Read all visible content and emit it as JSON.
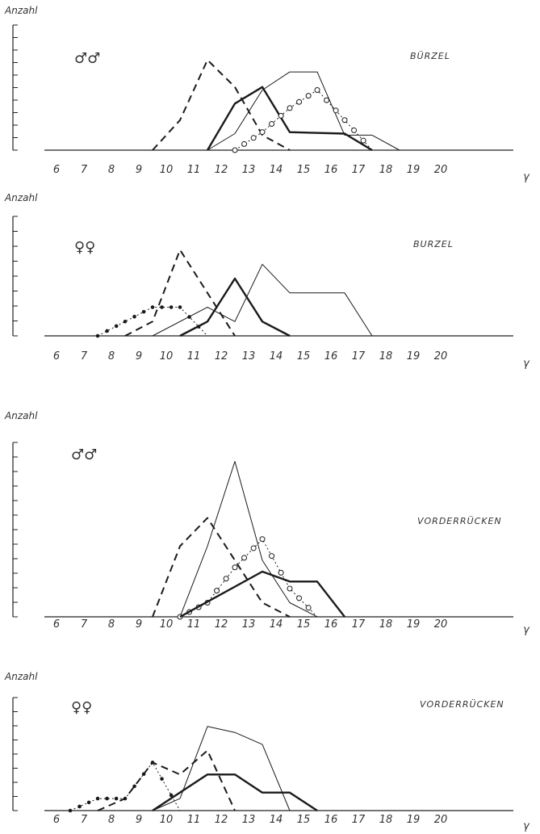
{
  "shared": {
    "ylabel": "Anzahl",
    "xunit": "γ",
    "series_styles": [
      "thin-solid",
      "thick-solid",
      "dashed",
      "dotted-filled-dots",
      "dotted-open-circles"
    ]
  },
  "panels": [
    {
      "symbol": "♂♂",
      "region": "BÜRZEL",
      "xticks": [
        "6",
        "7",
        "8",
        "9",
        "10",
        "11",
        "12",
        "13",
        "14",
        "15",
        "16",
        "17",
        "18",
        "19",
        "20"
      ]
    },
    {
      "symbol": "♀♀",
      "region": "BURZEL",
      "xticks": [
        "6",
        "7",
        "8",
        "9",
        "10",
        "11",
        "12",
        "13",
        "14",
        "15",
        "16",
        "17",
        "18",
        "19",
        "20"
      ]
    },
    {
      "symbol": "♂♂",
      "region": "VORDERRÜCKEN",
      "xticks": [
        "6",
        "7",
        "8",
        "9",
        "10",
        "11",
        "12",
        "13",
        "14",
        "15",
        "16",
        "17",
        "18",
        "19",
        "20"
      ]
    },
    {
      "symbol": "♀♀",
      "region": "VORDERRÜCKEN",
      "xticks": [
        "6",
        "7",
        "8",
        "9",
        "10",
        "11",
        "12",
        "13",
        "14",
        "15",
        "16",
        "17",
        "18",
        "19",
        "20"
      ]
    }
  ],
  "chart_data": [
    {
      "type": "line",
      "title": "BÜRZEL",
      "ylabel": "Anzahl",
      "xlabel": "γ",
      "xlim": [
        6,
        21
      ],
      "ylim": [
        0,
        8
      ],
      "series": [
        {
          "style": "dashed",
          "x": [
            9.5,
            10.5,
            11.5,
            12.5,
            13.5,
            14.5
          ],
          "y": [
            0,
            2,
            6,
            4.2,
            1,
            0
          ]
        },
        {
          "style": "thick-solid",
          "x": [
            11.5,
            12.5,
            13.5,
            14.5,
            16.5,
            17.5
          ],
          "y": [
            0,
            3.1,
            4.2,
            1.2,
            1.1,
            0
          ]
        },
        {
          "style": "thin-solid",
          "x": [
            11.5,
            12.5,
            13.5,
            14.5,
            15.5,
            16.5,
            17.5,
            18.5
          ],
          "y": [
            0,
            1.1,
            4.0,
            5.2,
            5.2,
            1.0,
            1.0,
            0
          ]
        },
        {
          "style": "dotted-open-circles",
          "x": [
            12.5,
            13.5,
            14.5,
            15.5,
            16.5,
            17.5
          ],
          "y": [
            0,
            1.2,
            2.8,
            4.0,
            2.0,
            0
          ]
        }
      ]
    },
    {
      "type": "line",
      "title": "BURZEL",
      "ylabel": "Anzahl",
      "xlabel": "γ",
      "xlim": [
        6,
        21
      ],
      "ylim": [
        0,
        8
      ],
      "series": [
        {
          "style": "dotted-filled-dots",
          "x": [
            7.5,
            8.5,
            9.5,
            10.5,
            11.5
          ],
          "y": [
            0,
            1,
            2,
            2,
            0
          ]
        },
        {
          "style": "dashed",
          "x": [
            8.5,
            9.5,
            10.5,
            11.5,
            12.5
          ],
          "y": [
            0,
            1,
            6,
            3,
            0
          ]
        },
        {
          "style": "thin-solid",
          "x": [
            9.5,
            11.5,
            12.5,
            13.5,
            14.5,
            16.5,
            17.5
          ],
          "y": [
            0,
            2,
            1,
            5,
            3,
            3,
            0
          ]
        },
        {
          "style": "thick-solid",
          "x": [
            10.5,
            11.5,
            12.5,
            13.5,
            14.5
          ],
          "y": [
            0,
            1,
            4,
            1,
            0
          ]
        }
      ]
    },
    {
      "type": "line",
      "title": "VORDERRÜCKEN",
      "ylabel": "Anzahl",
      "xlabel": "γ",
      "xlim": [
        6,
        21
      ],
      "ylim": [
        0,
        12
      ],
      "series": [
        {
          "style": "dashed",
          "x": [
            9.5,
            10.5,
            11.5,
            12.5,
            13.5,
            14.5
          ],
          "y": [
            0,
            5,
            7,
            4,
            1,
            0
          ]
        },
        {
          "style": "thin-solid",
          "x": [
            10.5,
            11.5,
            12.5,
            13.5,
            14.5,
            15.5
          ],
          "y": [
            0,
            5,
            11,
            4,
            1,
            0
          ]
        },
        {
          "style": "dotted-open-circles",
          "x": [
            10.5,
            11.5,
            12.5,
            13.5,
            14.5,
            15.5
          ],
          "y": [
            0,
            1,
            3.5,
            5.5,
            2,
            0
          ]
        },
        {
          "style": "thick-solid",
          "x": [
            10.5,
            13.5,
            14.5,
            15.5,
            16.5
          ],
          "y": [
            0,
            3.2,
            2.5,
            2.5,
            0
          ]
        }
      ]
    },
    {
      "type": "line",
      "title": "VORDERRÜCKEN",
      "ylabel": "Anzahl",
      "xlabel": "γ",
      "xlim": [
        6,
        21
      ],
      "ylim": [
        0,
        9
      ],
      "series": [
        {
          "style": "dotted-filled-dots",
          "x": [
            6.5,
            7.5,
            8.5,
            9.5,
            10.5
          ],
          "y": [
            0,
            1,
            1,
            4,
            0
          ]
        },
        {
          "style": "dashed",
          "x": [
            7.5,
            8.5,
            9.5,
            10.5,
            11.5,
            12.5
          ],
          "y": [
            0,
            1,
            4,
            3,
            5,
            0
          ]
        },
        {
          "style": "thin-solid",
          "x": [
            9.5,
            10.5,
            11.5,
            12.5,
            13.5,
            14.5
          ],
          "y": [
            0,
            1,
            7,
            6.5,
            5.5,
            0
          ]
        },
        {
          "style": "thick-solid",
          "x": [
            9.5,
            11.5,
            12.5,
            13.5,
            14.5,
            15.5
          ],
          "y": [
            0,
            3,
            3,
            1.5,
            1.5,
            0
          ]
        }
      ]
    }
  ]
}
